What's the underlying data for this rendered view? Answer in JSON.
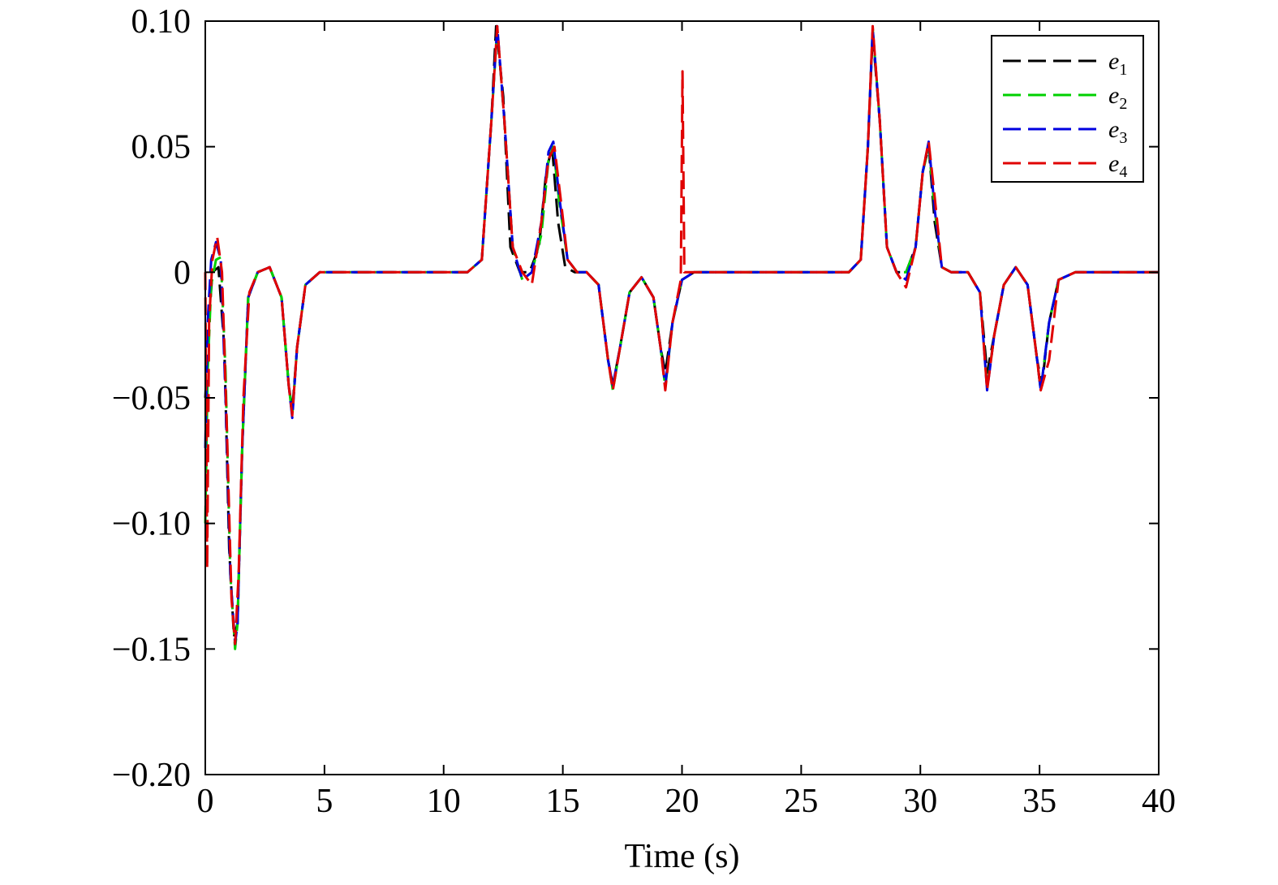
{
  "chart_data": {
    "type": "line",
    "title": "",
    "xlabel": "Time (s)",
    "ylabel": "",
    "xlim": [
      0,
      40
    ],
    "ylim": [
      -0.2,
      0.1
    ],
    "xticks": [
      0,
      5,
      10,
      15,
      20,
      25,
      30,
      35,
      40
    ],
    "xtick_labels": [
      "0",
      "5",
      "10",
      "15",
      "20",
      "25",
      "30",
      "35",
      "40"
    ],
    "yticks": [
      -0.2,
      -0.15,
      -0.1,
      -0.05,
      0,
      0.05,
      0.1
    ],
    "ytick_labels": [
      "−0.20",
      "−0.15",
      "−0.10",
      "−0.05",
      "0",
      "0.05",
      "0.10"
    ],
    "grid": false,
    "legend_position": "top-right",
    "series": [
      {
        "name": "e1",
        "name_base": "e",
        "name_sub": "1",
        "color": "#000000",
        "x": [
          0,
          0.15,
          0.3,
          0.55,
          0.8,
          1.0,
          1.2,
          1.35,
          1.55,
          1.8,
          2.2,
          2.7,
          3.2,
          3.5,
          3.65,
          3.85,
          4.2,
          4.8,
          6,
          9,
          11,
          11.6,
          12.0,
          12.2,
          12.5,
          12.8,
          13.2,
          13.6,
          14.0,
          14.3,
          14.55,
          14.8,
          15.1,
          15.5,
          16,
          16.5,
          16.9,
          17.1,
          17.4,
          17.8,
          18.3,
          18.8,
          19.1,
          19.3,
          19.6,
          20.0,
          20.5,
          22,
          25,
          27,
          27.5,
          27.8,
          28.0,
          28.3,
          28.6,
          29.0,
          29.4,
          29.8,
          30.1,
          30.35,
          30.6,
          30.9,
          31.3,
          32,
          32.5,
          32.8,
          33.1,
          33.5,
          34.0,
          34.5,
          34.9,
          35.1,
          35.4,
          35.8,
          36.5,
          38,
          40
        ],
        "y": [
          -0.05,
          -0.02,
          0.0,
          0.002,
          -0.03,
          -0.11,
          -0.145,
          -0.14,
          -0.07,
          -0.01,
          0.0,
          0.002,
          -0.01,
          -0.045,
          -0.055,
          -0.03,
          -0.005,
          0.0,
          0.0,
          0.0,
          0.0,
          0.005,
          0.06,
          0.098,
          0.07,
          0.01,
          0.0,
          0.0,
          0.01,
          0.04,
          0.05,
          0.02,
          0.002,
          0.0,
          0.0,
          -0.005,
          -0.035,
          -0.045,
          -0.03,
          -0.008,
          -0.002,
          -0.01,
          -0.03,
          -0.04,
          -0.02,
          -0.003,
          0.0,
          0.0,
          0.0,
          0.0,
          0.005,
          0.05,
          0.095,
          0.06,
          0.01,
          0.0,
          0.0,
          0.01,
          0.04,
          0.05,
          0.02,
          0.002,
          0.0,
          0.0,
          -0.008,
          -0.04,
          -0.025,
          -0.005,
          0.002,
          -0.005,
          -0.035,
          -0.045,
          -0.02,
          -0.003,
          0.0,
          0.0,
          0.0
        ]
      },
      {
        "name": "e2",
        "name_base": "e",
        "name_sub": "2",
        "color": "#00d000",
        "x": [
          0,
          0.1,
          0.25,
          0.45,
          0.65,
          0.85,
          1.05,
          1.25,
          1.35,
          1.55,
          1.8,
          2.2,
          2.7,
          3.2,
          3.5,
          3.65,
          3.85,
          4.2,
          4.8,
          6,
          9,
          11,
          11.6,
          12.0,
          12.25,
          12.55,
          12.9,
          13.3,
          13.7,
          14.1,
          14.4,
          14.6,
          14.85,
          15.2,
          15.6,
          16,
          16.5,
          16.9,
          17.1,
          17.4,
          17.8,
          18.3,
          18.8,
          19.1,
          19.3,
          19.6,
          20.0,
          20.5,
          22,
          25,
          27,
          27.5,
          27.8,
          28.0,
          28.3,
          28.6,
          29.0,
          29.4,
          29.8,
          30.1,
          30.35,
          30.6,
          30.9,
          31.3,
          32,
          32.5,
          32.8,
          33.1,
          33.5,
          34.0,
          34.5,
          34.9,
          35.05,
          35.4,
          35.8,
          36.5,
          38,
          40
        ],
        "y": [
          -0.1,
          -0.04,
          -0.005,
          0.005,
          0.006,
          -0.04,
          -0.12,
          -0.15,
          -0.14,
          -0.07,
          -0.01,
          0.0,
          0.002,
          -0.01,
          -0.045,
          -0.057,
          -0.03,
          -0.005,
          0.0,
          0.0,
          0.0,
          0.0,
          0.005,
          0.06,
          0.097,
          0.06,
          0.01,
          -0.003,
          0.0,
          0.015,
          0.045,
          0.05,
          0.028,
          0.005,
          0.0,
          0.0,
          -0.005,
          -0.035,
          -0.047,
          -0.03,
          -0.008,
          -0.002,
          -0.01,
          -0.03,
          -0.046,
          -0.02,
          -0.003,
          0.0,
          0.0,
          0.0,
          0.0,
          0.005,
          0.05,
          0.097,
          0.06,
          0.01,
          0.0,
          0.0,
          0.01,
          0.04,
          0.05,
          0.025,
          0.002,
          0.0,
          0.0,
          -0.008,
          -0.046,
          -0.025,
          -0.005,
          0.002,
          -0.005,
          -0.035,
          -0.047,
          -0.02,
          -0.003,
          0.0,
          0.0,
          0.0
        ]
      },
      {
        "name": "e3",
        "name_base": "e",
        "name_sub": "3",
        "color": "#0000e0",
        "x": [
          0,
          0.1,
          0.25,
          0.45,
          0.65,
          0.85,
          1.05,
          1.25,
          1.35,
          1.55,
          1.8,
          2.2,
          2.7,
          3.2,
          3.5,
          3.65,
          3.85,
          4.2,
          4.8,
          6,
          9,
          11,
          11.6,
          12.0,
          12.25,
          12.55,
          12.9,
          13.3,
          13.7,
          14.1,
          14.4,
          14.6,
          14.85,
          15.2,
          15.6,
          16,
          16.5,
          16.9,
          17.1,
          17.4,
          17.8,
          18.3,
          18.8,
          19.1,
          19.3,
          19.6,
          20.0,
          20.5,
          22,
          25,
          27,
          27.5,
          27.8,
          28.0,
          28.3,
          28.6,
          29.0,
          29.4,
          29.8,
          30.1,
          30.35,
          30.6,
          30.9,
          31.3,
          32,
          32.5,
          32.8,
          33.1,
          33.5,
          34.0,
          34.5,
          34.9,
          35.05,
          35.4,
          35.8,
          36.5,
          38,
          40
        ],
        "y": [
          -0.07,
          -0.02,
          0.005,
          0.012,
          0.005,
          -0.05,
          -0.12,
          -0.148,
          -0.14,
          -0.07,
          -0.01,
          0.0,
          0.002,
          -0.01,
          -0.045,
          -0.058,
          -0.03,
          -0.005,
          0.0,
          0.0,
          0.0,
          0.0,
          0.005,
          0.06,
          0.098,
          0.06,
          0.01,
          -0.003,
          0.0,
          0.02,
          0.048,
          0.052,
          0.03,
          0.005,
          0.0,
          0.0,
          -0.005,
          -0.035,
          -0.045,
          -0.03,
          -0.008,
          -0.002,
          -0.01,
          -0.03,
          -0.045,
          -0.02,
          -0.003,
          0.0,
          0.0,
          0.0,
          0.0,
          0.005,
          0.05,
          0.097,
          0.06,
          0.01,
          0.0,
          -0.003,
          0.01,
          0.04,
          0.052,
          0.025,
          0.002,
          0.0,
          0.0,
          -0.008,
          -0.047,
          -0.025,
          -0.005,
          0.002,
          -0.005,
          -0.035,
          -0.047,
          -0.02,
          -0.003,
          0.0,
          0.0,
          0.0
        ]
      },
      {
        "name": "e4",
        "name_base": "e",
        "name_sub": "4",
        "color": "#e00000",
        "x": [
          0,
          0.08,
          0.16,
          0.3,
          0.5,
          0.7,
          0.9,
          1.1,
          1.25,
          1.4,
          1.6,
          1.85,
          2.2,
          2.7,
          3.2,
          3.5,
          3.65,
          3.85,
          4.2,
          4.8,
          6,
          9,
          11,
          11.6,
          12.0,
          12.25,
          12.55,
          12.9,
          13.3,
          13.7,
          14.1,
          14.4,
          14.65,
          14.9,
          15.2,
          15.6,
          16,
          16.5,
          16.9,
          17.1,
          17.4,
          17.8,
          18.3,
          18.8,
          19.1,
          19.3,
          19.6,
          19.95,
          20.02,
          20.1,
          20.5,
          22,
          25,
          27,
          27.5,
          27.8,
          28.0,
          28.3,
          28.6,
          29.0,
          29.4,
          29.8,
          30.1,
          30.35,
          30.6,
          30.9,
          31.3,
          32,
          32.5,
          32.8,
          33.1,
          33.5,
          34.0,
          34.5,
          34.9,
          35.05,
          35.4,
          35.8,
          36.5,
          38,
          40
        ],
        "y": [
          0.0,
          -0.118,
          -0.02,
          0.005,
          0.014,
          0.0,
          -0.06,
          -0.13,
          -0.148,
          -0.12,
          -0.05,
          -0.008,
          0.0,
          0.002,
          -0.01,
          -0.045,
          -0.057,
          -0.03,
          -0.005,
          0.0,
          0.0,
          0.0,
          0.0,
          0.005,
          0.06,
          0.098,
          0.06,
          0.01,
          0.0,
          -0.005,
          0.02,
          0.045,
          0.05,
          0.03,
          0.005,
          0.0,
          0.0,
          -0.005,
          -0.035,
          -0.047,
          -0.03,
          -0.008,
          -0.002,
          -0.01,
          -0.03,
          -0.047,
          -0.02,
          -0.003,
          0.08,
          0.0,
          0.0,
          0.0,
          0.0,
          0.0,
          0.005,
          0.05,
          0.098,
          0.06,
          0.01,
          0.0,
          -0.006,
          0.01,
          0.04,
          0.052,
          0.03,
          0.002,
          0.0,
          0.0,
          -0.008,
          -0.047,
          -0.025,
          -0.005,
          0.002,
          -0.005,
          -0.035,
          -0.047,
          -0.035,
          -0.003,
          0.0,
          0.0,
          0.0
        ]
      }
    ]
  }
}
